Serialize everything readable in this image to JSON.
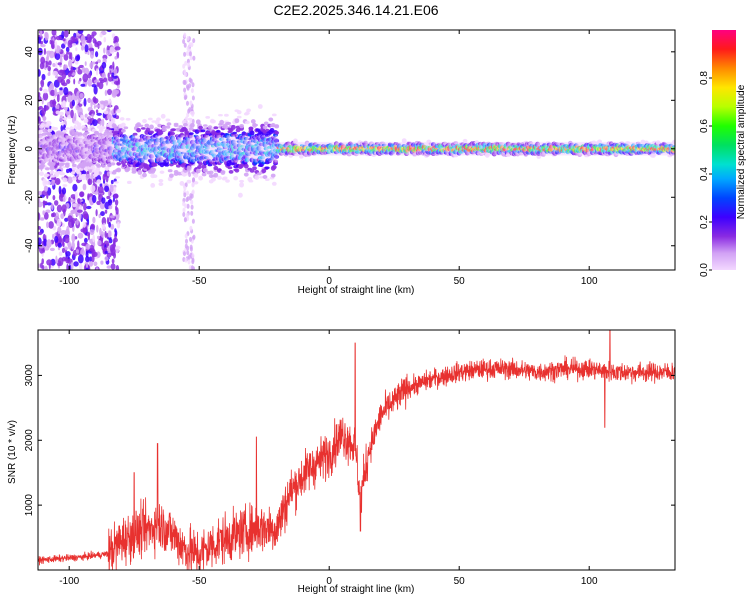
{
  "figure_title": "C2E2.2025.346.14.21.E06",
  "colors": {
    "axis": "#000000",
    "snr_line": "#e8312f"
  },
  "chart_data": [
    {
      "type": "heatmap",
      "title": "C2E2.2025.346.14.21.E06",
      "xlabel": "Height of straight line (km)",
      "ylabel": "Frequency (Hz)",
      "xlim": [
        -112,
        133
      ],
      "ylim": [
        -50,
        49
      ],
      "xticks": [
        -100,
        -50,
        0,
        50,
        100
      ],
      "yticks": [
        -40,
        -20,
        0,
        20,
        40
      ],
      "colorbar": {
        "label": "Normalized spectral amplitude",
        "range": [
          0,
          1
        ],
        "ticks": [
          "0.0",
          "0.2",
          "0.4",
          "0.6",
          "0.8"
        ],
        "tick_values": [
          0.0,
          0.2,
          0.4,
          0.6,
          0.8
        ]
      },
      "description_points": {
        "centerline_freq": 0,
        "noise_region_km": [
          -112,
          -83
        ],
        "noise_column_km": [
          -56,
          -52
        ],
        "turbulent_region_km": [
          -83,
          -20
        ]
      }
    },
    {
      "type": "line",
      "xlabel": "Height of straight line (km)",
      "ylabel": "SNR (10 * v/v)",
      "xlim": [
        -112,
        133
      ],
      "ylim": [
        0,
        3700
      ],
      "xticks": [
        -100,
        -50,
        0,
        50,
        100
      ],
      "yticks": [
        1000,
        2000,
        3000
      ],
      "series": [
        {
          "name": "SNR",
          "x_knots": [
            -112,
            -95,
            -85,
            -80,
            -72,
            -65,
            -60,
            -55,
            -50,
            -42,
            -35,
            -28,
            -20,
            -15,
            -8,
            0,
            5,
            10,
            12,
            15,
            20,
            30,
            40,
            50,
            60,
            70,
            80,
            90,
            100,
            110,
            120,
            133
          ],
          "y_knots": [
            150,
            200,
            250,
            450,
            600,
            700,
            550,
            300,
            250,
            450,
            550,
            650,
            650,
            1200,
            1550,
            1800,
            2100,
            1900,
            1100,
            1800,
            2400,
            2800,
            2950,
            3050,
            3100,
            3100,
            3050,
            3100,
            3100,
            3050,
            3050,
            3050
          ],
          "spikes": [
            {
              "x": 10,
              "y": 3500
            },
            {
              "x": 12,
              "y": 600
            },
            {
              "x": 106,
              "y": 2200
            },
            {
              "x": 108,
              "y": 3700
            },
            {
              "x": -66,
              "y": 1950
            },
            {
              "x": -75,
              "y": 1500
            },
            {
              "x": -28,
              "y": 2050
            }
          ]
        }
      ]
    }
  ]
}
